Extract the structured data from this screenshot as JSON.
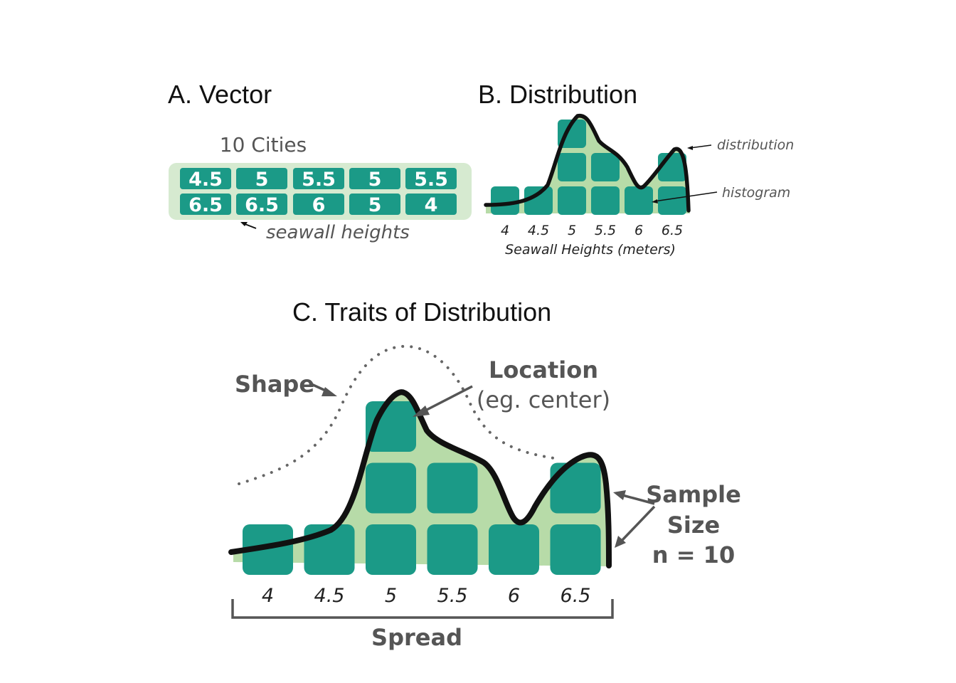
{
  "panels": {
    "a": {
      "title": "A. Vector",
      "heading": "10 Cities",
      "cells": [
        "4.5",
        "5",
        "5.5",
        "5",
        "5.5",
        "6.5",
        "6.5",
        "6",
        "5",
        "4"
      ],
      "annotation": "seawall heights"
    },
    "b": {
      "title": "B. Distribution",
      "label_distribution": "distribution",
      "label_histogram": "histogram",
      "bins": [
        "4",
        "4.5",
        "5",
        "5.5",
        "6",
        "6.5"
      ],
      "counts": [
        1,
        1,
        3,
        2,
        1,
        2
      ],
      "xlabel": "Seawall Heights (meters)"
    },
    "c": {
      "title": "C. Traits of Distribution",
      "shape_label": "Shape",
      "location_label": "Location",
      "location_sub": "(eg. center)",
      "sample_label_1": "Sample",
      "sample_label_2": "Size",
      "sample_label_3": "n = 10",
      "bins": [
        "4",
        "4.5",
        "5",
        "5.5",
        "6",
        "6.5"
      ],
      "counts": [
        1,
        1,
        3,
        2,
        1,
        2
      ],
      "spread_label": "Spread"
    }
  },
  "colors": {
    "cell": "#1b9a87",
    "fill": "#b7dba8",
    "vector_bg": "#d6ead0",
    "curve": "#111111",
    "annotation": "#555555"
  }
}
